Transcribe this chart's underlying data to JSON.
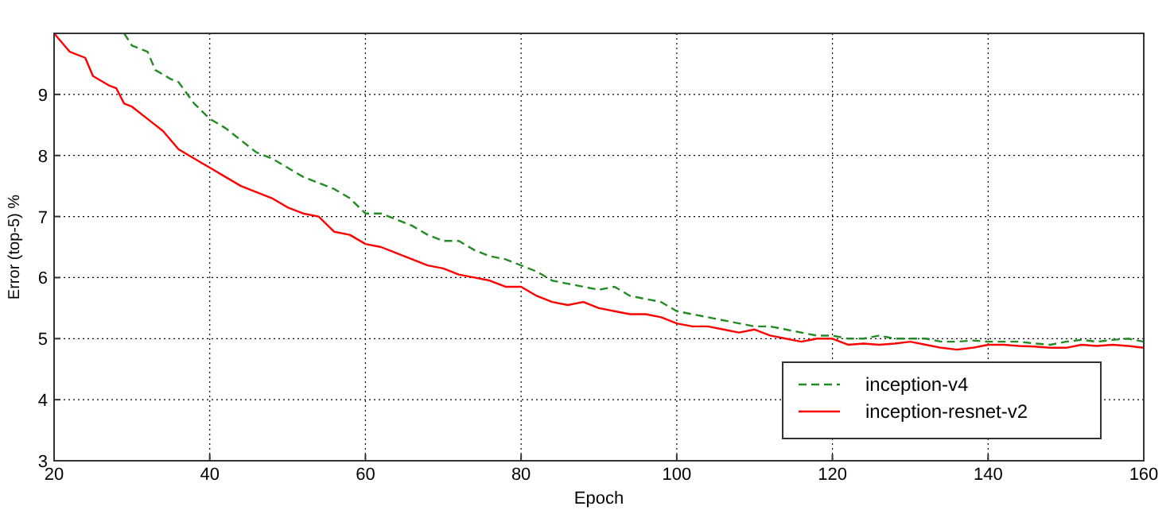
{
  "chart_data": {
    "type": "line",
    "xlabel": "Epoch",
    "ylabel": "Error (top-5) %",
    "xlim": [
      20,
      160
    ],
    "xticks": [
      20,
      40,
      60,
      80,
      100,
      120,
      140,
      160
    ],
    "ylim": [
      3,
      10
    ],
    "yticks": [
      3,
      4,
      5,
      6,
      7,
      8,
      9
    ],
    "grid": true,
    "legend": "bottom right",
    "series": [
      {
        "name": "inception-v4",
        "color": "#228b22",
        "line_style": "dashed",
        "x": [
          29,
          30,
          32,
          33,
          35,
          36,
          38,
          40,
          42,
          44,
          46,
          48,
          50,
          52,
          54,
          56,
          58,
          60,
          62,
          64,
          66,
          68,
          70,
          72,
          74,
          76,
          78,
          80,
          82,
          84,
          86,
          88,
          90,
          92,
          94,
          96,
          98,
          100,
          102,
          104,
          106,
          108,
          110,
          112,
          114,
          116,
          118,
          120,
          122,
          124,
          126,
          128,
          130,
          132,
          134,
          136,
          138,
          140,
          142,
          144,
          146,
          148,
          150,
          152,
          154,
          156,
          158,
          160
        ],
        "values": [
          10,
          9.8,
          9.7,
          9.4,
          9.25,
          9.2,
          8.85,
          8.6,
          8.45,
          8.25,
          8.05,
          7.95,
          7.8,
          7.65,
          7.55,
          7.45,
          7.3,
          7.05,
          7.05,
          6.95,
          6.85,
          6.7,
          6.6,
          6.6,
          6.45,
          6.35,
          6.3,
          6.2,
          6.1,
          5.95,
          5.9,
          5.85,
          5.8,
          5.85,
          5.7,
          5.65,
          5.6,
          5.45,
          5.4,
          5.35,
          5.3,
          5.25,
          5.2,
          5.2,
          5.15,
          5.1,
          5.05,
          5.05,
          5,
          5,
          5.05,
          5,
          5,
          5,
          4.95,
          4.95,
          4.97,
          4.95,
          4.95,
          4.95,
          4.92,
          4.9,
          4.95,
          4.98,
          4.95,
          4.98,
          5,
          4.95
        ]
      },
      {
        "name": "inception-resnet-v2",
        "color": "#ff0000",
        "line_style": "solid",
        "x": [
          20,
          22,
          24,
          25,
          27,
          28,
          29,
          30,
          32,
          34,
          36,
          38,
          40,
          42,
          44,
          46,
          48,
          50,
          52,
          54,
          56,
          58,
          60,
          62,
          64,
          66,
          68,
          70,
          72,
          74,
          76,
          78,
          80,
          82,
          84,
          86,
          88,
          90,
          92,
          94,
          96,
          98,
          100,
          102,
          104,
          106,
          108,
          110,
          112,
          114,
          116,
          118,
          120,
          122,
          124,
          126,
          128,
          130,
          132,
          134,
          136,
          138,
          140,
          142,
          144,
          146,
          148,
          150,
          152,
          154,
          156,
          158,
          160
        ],
        "values": [
          10,
          9.7,
          9.6,
          9.3,
          9.15,
          9.1,
          8.85,
          8.8,
          8.6,
          8.4,
          8.1,
          7.95,
          7.8,
          7.65,
          7.5,
          7.4,
          7.3,
          7.15,
          7.05,
          7,
          6.75,
          6.7,
          6.55,
          6.5,
          6.4,
          6.3,
          6.2,
          6.15,
          6.05,
          6,
          5.95,
          5.85,
          5.85,
          5.7,
          5.6,
          5.55,
          5.6,
          5.5,
          5.45,
          5.4,
          5.4,
          5.35,
          5.25,
          5.2,
          5.2,
          5.15,
          5.1,
          5.15,
          5.05,
          5,
          4.95,
          5,
          5,
          4.9,
          4.92,
          4.9,
          4.92,
          4.95,
          4.9,
          4.85,
          4.82,
          4.85,
          4.9,
          4.9,
          4.88,
          4.87,
          4.85,
          4.85,
          4.9,
          4.88,
          4.9,
          4.88,
          4.85
        ]
      }
    ]
  }
}
